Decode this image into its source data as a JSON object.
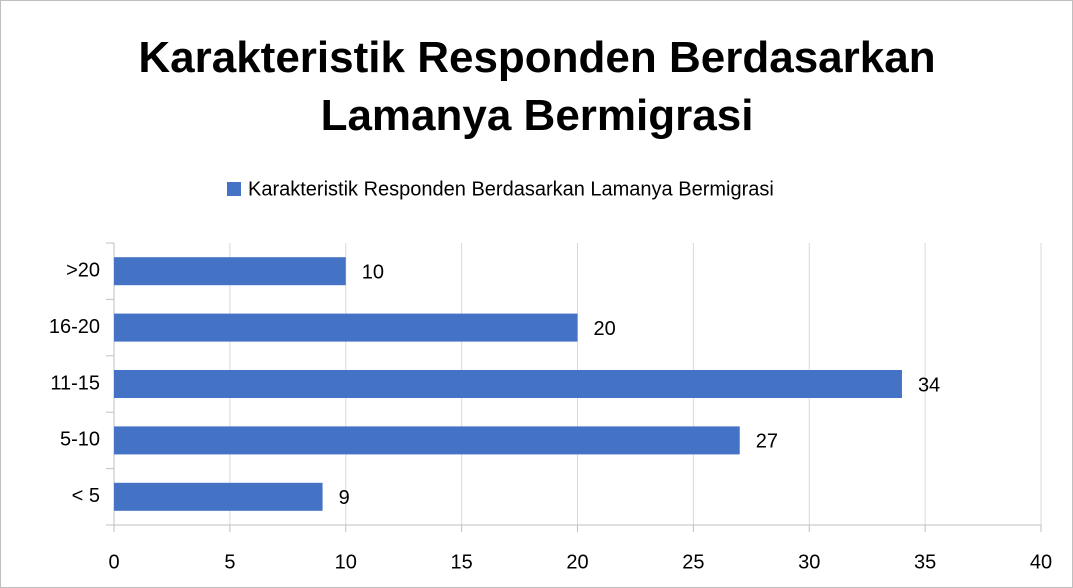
{
  "chart_data": {
    "type": "hbar",
    "title": "Karakteristik Responden Berdasarkan Lamanya Bermigrasi",
    "categories": [
      "< 5",
      "5-10",
      "11-15",
      "16-20",
      ">20"
    ],
    "series": [
      {
        "name": "Karakteristik Responden Berdasarkan Lamanya Bermigrasi",
        "color": "#4472c4",
        "values": [
          9,
          27,
          34,
          20,
          10
        ]
      }
    ],
    "xlim": [
      0,
      40
    ],
    "xticks": [
      0,
      5,
      10,
      15,
      20,
      25,
      30,
      35,
      40
    ],
    "grid": true,
    "legend": "top"
  }
}
